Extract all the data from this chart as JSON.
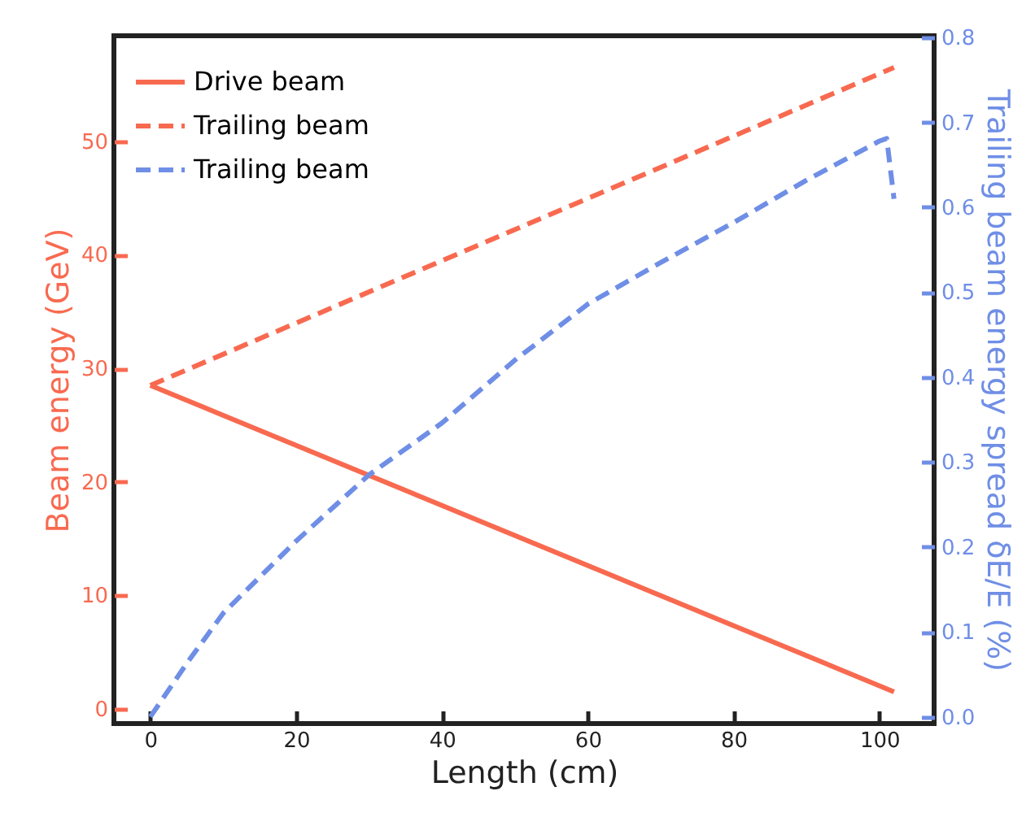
{
  "chart_data": {
    "type": "line",
    "xlabel": "Length (cm)",
    "ylabel": "Beam energy (GeV)",
    "y2label": "Trailing beam energy spread δE/E (%)",
    "xlim": [
      -5,
      107.5
    ],
    "xticks": [
      0,
      20,
      40,
      60,
      80,
      100
    ],
    "ylim": [
      -1.3,
      59.3
    ],
    "yticks": [
      0,
      10,
      20,
      30,
      40,
      50
    ],
    "y2lim": [
      -0.008,
      0.802
    ],
    "y2ticks": [
      {
        "value": 0,
        "label": "0.0"
      },
      0.1,
      0.2,
      0.3,
      0.4,
      0.5,
      0.6,
      0.7,
      0.8
    ],
    "legend": "top left",
    "grid": false,
    "series": [
      {
        "name": "Drive beam",
        "color": "#f86a50",
        "line_style": "solid",
        "x": [
          0,
          102
        ],
        "values": [
          28.5,
          1.5
        ]
      },
      {
        "name": "Trailing beam",
        "color": "#f86a50",
        "line_style": "dashed",
        "x": [
          0,
          102
        ],
        "values": [
          28.5,
          56.5
        ]
      },
      {
        "name": "Trailing beam",
        "color": "#6f8ee6",
        "line_style": "dashed",
        "axis": "y2",
        "x": [
          0,
          5,
          10,
          20,
          30,
          40,
          50,
          60,
          70,
          80,
          90,
          100,
          101,
          102
        ],
        "values": [
          0,
          0.063,
          0.122,
          0.207,
          0.285,
          0.346,
          0.42,
          0.486,
          0.535,
          0.582,
          0.632,
          0.678,
          0.681,
          0.61
        ]
      }
    ]
  }
}
